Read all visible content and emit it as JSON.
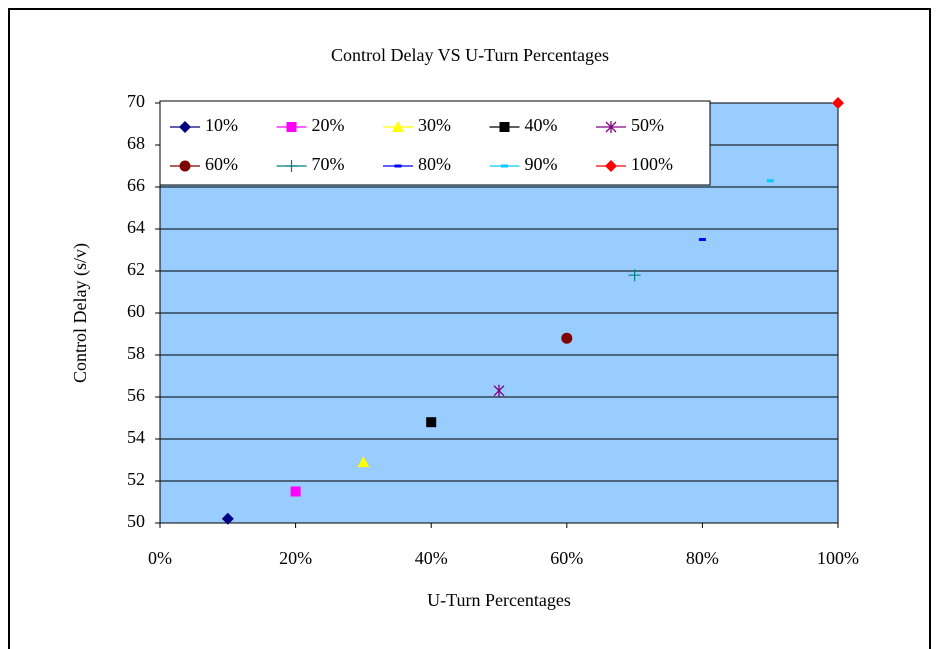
{
  "chart_data": {
    "type": "scatter",
    "title": "Control Delay VS U-Turn Percentages",
    "x_label": "U-Turn Percentages",
    "y_label": "Control Delay (s/v)",
    "xlim": [
      0,
      100
    ],
    "xticks": [
      {
        "value": 0,
        "label": "0%"
      },
      {
        "value": 20,
        "label": "20%"
      },
      {
        "value": 40,
        "label": "40%"
      },
      {
        "value": 60,
        "label": "60%"
      },
      {
        "value": 80,
        "label": "80%"
      },
      {
        "value": 100,
        "label": "100%"
      }
    ],
    "ylim": [
      50,
      70
    ],
    "yticks": [
      50,
      52,
      54,
      56,
      58,
      60,
      62,
      64,
      66,
      68,
      70
    ],
    "grid": true,
    "plot_background": "#99ccff",
    "legend": "top-left",
    "series": [
      {
        "name": "10%",
        "color": "#000080",
        "marker": "diamond",
        "x": [
          10
        ],
        "values": [
          50.2
        ]
      },
      {
        "name": "20%",
        "color": "#ff00ff",
        "marker": "square",
        "x": [
          20
        ],
        "values": [
          51.5
        ]
      },
      {
        "name": "30%",
        "color": "#ffff00",
        "marker": "triangle",
        "x": [
          30
        ],
        "values": [
          52.9
        ]
      },
      {
        "name": "40%",
        "color": "#000000",
        "marker": "square",
        "x": [
          40
        ],
        "values": [
          54.8
        ]
      },
      {
        "name": "50%",
        "color": "#800080",
        "marker": "star",
        "x": [
          50
        ],
        "values": [
          56.3
        ]
      },
      {
        "name": "60%",
        "color": "#800000",
        "marker": "circle",
        "x": [
          60
        ],
        "values": [
          58.8
        ]
      },
      {
        "name": "70%",
        "color": "#008080",
        "marker": "plus",
        "x": [
          70
        ],
        "values": [
          61.8
        ]
      },
      {
        "name": "80%",
        "color": "#0000ff",
        "marker": "dash",
        "x": [
          80
        ],
        "values": [
          63.5
        ]
      },
      {
        "name": "90%",
        "color": "#00ccff",
        "marker": "dash",
        "x": [
          90
        ],
        "values": [
          66.3
        ]
      },
      {
        "name": "100%",
        "color": "#ff0000",
        "marker": "diamond",
        "x": [
          100
        ],
        "values": [
          70
        ]
      }
    ]
  }
}
